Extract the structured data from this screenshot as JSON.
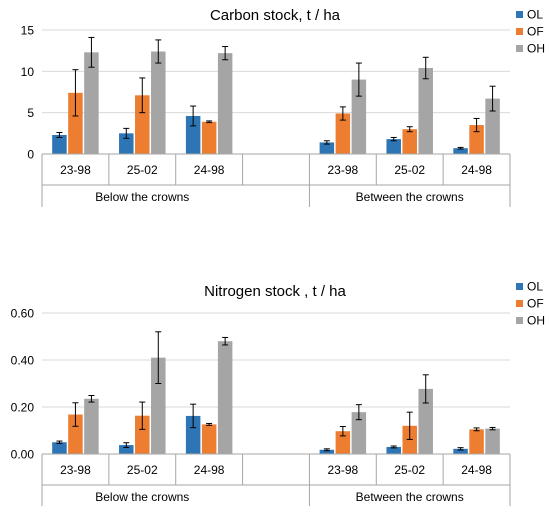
{
  "chart_data": [
    {
      "type": "bar",
      "title": "Carbon stock, t / ha",
      "xlabel": "",
      "ylabel": "",
      "ylim": [
        0,
        15
      ],
      "yticks": [
        "0",
        "5",
        "10",
        "15"
      ],
      "legend_position": "right",
      "groups": [
        {
          "label": "Below the crowns",
          "categories": [
            "23-98",
            "25-02",
            "24-98"
          ]
        },
        {
          "label": "Between the crowns",
          "categories": [
            "23-98",
            "25-02",
            "24-98"
          ]
        }
      ],
      "series": [
        {
          "name": "OL",
          "color": "#2E75B6",
          "values": [
            2.3,
            2.5,
            4.6,
            null,
            1.4,
            1.8,
            0.7
          ],
          "errors": [
            0.3,
            0.6,
            1.2,
            null,
            0.2,
            0.2,
            0.1
          ]
        },
        {
          "name": "OF",
          "color": "#ED7D31",
          "values": [
            7.4,
            7.1,
            3.9,
            null,
            4.9,
            3.0,
            3.5
          ],
          "errors": [
            2.8,
            2.1,
            0.1,
            null,
            0.8,
            0.3,
            0.8
          ]
        },
        {
          "name": "OH",
          "color": "#A5A5A5",
          "values": [
            12.3,
            12.4,
            12.2,
            null,
            9.0,
            10.4,
            6.7
          ],
          "errors": [
            1.8,
            1.4,
            0.8,
            null,
            2.0,
            1.3,
            1.5
          ]
        }
      ]
    },
    {
      "type": "bar",
      "title": "Nitrogen stock , t / ha",
      "xlabel": "",
      "ylabel": "",
      "ylim": [
        0,
        0.6
      ],
      "yticks": [
        "0.00",
        "0.20",
        "0.40",
        "0.60"
      ],
      "legend_position": "right",
      "groups": [
        {
          "label": "Below the crowns",
          "categories": [
            "23-98",
            "25-02",
            "24-98"
          ]
        },
        {
          "label": "Between the crowns",
          "categories": [
            "23-98",
            "25-02",
            "24-98"
          ]
        }
      ],
      "series": [
        {
          "name": "OL",
          "color": "#2E75B6",
          "values": [
            0.05,
            0.038,
            0.162,
            null,
            0.018,
            0.03,
            0.022
          ],
          "errors": [
            0.005,
            0.01,
            0.05,
            null,
            0.004,
            0.004,
            0.005
          ]
        },
        {
          "name": "OF",
          "color": "#ED7D31",
          "values": [
            0.168,
            0.163,
            0.126,
            null,
            0.097,
            0.12,
            0.105
          ],
          "errors": [
            0.05,
            0.058,
            0.004,
            null,
            0.02,
            0.058,
            0.006
          ]
        },
        {
          "name": "OH",
          "color": "#A5A5A5",
          "values": [
            0.235,
            0.41,
            0.48,
            null,
            0.178,
            0.277,
            0.108
          ],
          "errors": [
            0.014,
            0.11,
            0.016,
            null,
            0.032,
            0.06,
            0.005
          ]
        }
      ]
    }
  ]
}
